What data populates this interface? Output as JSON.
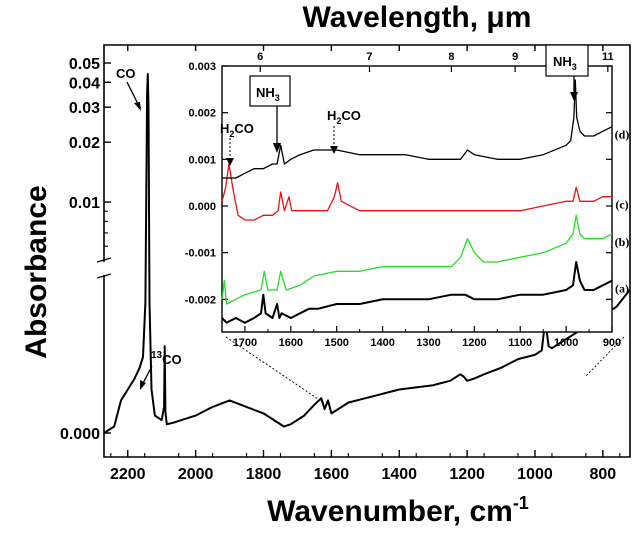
{
  "chart_data": [
    {
      "type": "line",
      "role": "main",
      "xlabel": "Wavenumber, cm",
      "xlabel_sup": "-1",
      "ylabel": "Absorbance",
      "top_axis_label": "Wavelength, μm",
      "x_axis_reversed": true,
      "xlim": [
        2270,
        720
      ],
      "x_ticks": [
        "2200",
        "2000",
        "1800",
        "1600",
        "1400",
        "1200",
        "1000",
        "800"
      ],
      "y_upper_scale": "log",
      "y_upper_ticks": [
        "0.05",
        "0.04",
        "0.03",
        "0.02",
        "0.01"
      ],
      "y_lower_ticks": [
        "0.000"
      ],
      "axis_break": true,
      "annotations": {
        "co": "CO",
        "c13_sup": "13",
        "c13": "CO"
      },
      "series": [
        {
          "x": [
            2270,
            2240,
            2220,
            2200,
            2180,
            2165,
            2155,
            2148,
            2143,
            2141,
            2139,
            2136,
            2130,
            2120,
            2100,
            2093,
            2091,
            2089,
            2085,
            2060,
            2000,
            1950,
            1900,
            1850,
            1800,
            1760,
            1740,
            1720,
            1700,
            1680,
            1650,
            1630,
            1620,
            1610,
            1600,
            1580,
            1550,
            1500,
            1450,
            1400,
            1350,
            1300,
            1250,
            1220,
            1210,
            1200,
            1180,
            1150,
            1100,
            1050,
            1000,
            980,
            970,
            960,
            950,
            930,
            900,
            850,
            800,
            760,
            720
          ],
          "y": [
            0.0,
            0.0003,
            0.0015,
            0.002,
            0.0025,
            0.003,
            0.0035,
            0.006,
            0.035,
            0.044,
            0.03,
            0.006,
            0.002,
            0.0008,
            0.0006,
            0.0012,
            0.004,
            0.001,
            0.0004,
            0.0005,
            0.0008,
            0.0012,
            0.0015,
            0.0012,
            0.0009,
            0.0005,
            0.0003,
            0.0004,
            0.0006,
            0.0008,
            0.0013,
            0.0016,
            0.0011,
            0.0015,
            0.0009,
            0.0011,
            0.0014,
            0.0016,
            0.0018,
            0.002,
            0.0021,
            0.0022,
            0.0024,
            0.0027,
            0.0026,
            0.0024,
            0.0025,
            0.0027,
            0.003,
            0.0034,
            0.0036,
            0.0038,
            0.0052,
            0.004,
            0.0039,
            0.0041,
            0.0044,
            0.0049,
            0.0054,
            0.0058,
            0.0066
          ]
        }
      ]
    },
    {
      "type": "line",
      "role": "inset",
      "x_axis_reversed": true,
      "xlim": [
        1750,
        900
      ],
      "ylim": [
        -0.0027,
        0.003
      ],
      "x_ticks": [
        "1700",
        "1600",
        "1500",
        "1400",
        "1300",
        "1200",
        "1100",
        "1000",
        "900"
      ],
      "y_ticks": [
        "0.003",
        "0.002",
        "0.001",
        "0.000",
        "-0.001",
        "-0.002"
      ],
      "top_ticks": [
        "6",
        "7",
        "8",
        "9",
        "11"
      ],
      "annotations": {
        "nh3_left": "NH",
        "nh3_left_sub": "3",
        "nh3_right": "NH",
        "nh3_right_sub": "3",
        "h2co_1": "H",
        "h2co_1_sub": "2",
        "h2co_1_rest": "CO",
        "h2co_2": "H",
        "h2co_2_sub": "2",
        "h2co_2_rest": "CO"
      },
      "series": [
        {
          "name": "(a)",
          "color": "#000000",
          "x": [
            1750,
            1740,
            1720,
            1700,
            1680,
            1665,
            1660,
            1655,
            1640,
            1630,
            1625,
            1620,
            1600,
            1580,
            1560,
            1540,
            1500,
            1450,
            1400,
            1350,
            1300,
            1250,
            1220,
            1200,
            1150,
            1100,
            1050,
            1000,
            985,
            978,
            970,
            960,
            940,
            920,
            900
          ],
          "y": [
            -0.0024,
            -0.0025,
            -0.0024,
            -0.0025,
            -0.0024,
            -0.0023,
            -0.0019,
            -0.0023,
            -0.0024,
            -0.0021,
            -0.0024,
            -0.0023,
            -0.0024,
            -0.0023,
            -0.0022,
            -0.0022,
            -0.0021,
            -0.0021,
            -0.002,
            -0.002,
            -0.002,
            -0.0019,
            -0.0019,
            -0.002,
            -0.002,
            -0.0019,
            -0.0019,
            -0.0018,
            -0.0017,
            -0.0012,
            -0.0016,
            -0.0018,
            -0.0018,
            -0.0017,
            -0.0016
          ]
        },
        {
          "name": "(b)",
          "color": "#22dd22",
          "x": [
            1750,
            1745,
            1740,
            1720,
            1700,
            1665,
            1658,
            1650,
            1630,
            1622,
            1610,
            1580,
            1550,
            1500,
            1450,
            1400,
            1350,
            1300,
            1250,
            1230,
            1215,
            1200,
            1180,
            1150,
            1100,
            1050,
            1000,
            985,
            978,
            970,
            960,
            940,
            920,
            900
          ],
          "y": [
            -0.002,
            -0.0016,
            -0.0021,
            -0.002,
            -0.0019,
            -0.0018,
            -0.0014,
            -0.0018,
            -0.0018,
            -0.0014,
            -0.0018,
            -0.0017,
            -0.0015,
            -0.0014,
            -0.0014,
            -0.0013,
            -0.0013,
            -0.0013,
            -0.0013,
            -0.0011,
            -0.0007,
            -0.001,
            -0.0012,
            -0.0012,
            -0.0011,
            -0.001,
            -0.0008,
            -0.0006,
            -0.0002,
            -0.0006,
            -0.0007,
            -0.0007,
            -0.0007,
            -0.0006
          ]
        },
        {
          "name": "(c)",
          "color": "#ee1111",
          "x": [
            1750,
            1742,
            1735,
            1725,
            1715,
            1700,
            1680,
            1660,
            1640,
            1628,
            1622,
            1614,
            1604,
            1598,
            1590,
            1560,
            1520,
            1505,
            1498,
            1490,
            1450,
            1400,
            1350,
            1300,
            1250,
            1200,
            1150,
            1100,
            1050,
            1000,
            985,
            978,
            970,
            960,
            940,
            920,
            900
          ],
          "y": [
            0.0001,
            0.0004,
            0.0009,
            0.0003,
            -0.0002,
            -0.0003,
            -0.0003,
            -0.0002,
            -0.0002,
            -0.0001,
            0.0003,
            -0.0001,
            0.0002,
            -0.0001,
            -0.0001,
            -0.0001,
            -0.0001,
            0.0002,
            0.0005,
            0.0001,
            -0.0001,
            -0.0001,
            -0.0001,
            -0.0001,
            -0.0001,
            -0.0001,
            -0.0001,
            -0.0001,
            0.0,
            0.0001,
            0.0001,
            0.0004,
            0.0001,
            0.0001,
            0.0001,
            0.0002,
            0.0002
          ]
        },
        {
          "name": "(d)",
          "color": "#000000",
          "x": [
            1750,
            1720,
            1700,
            1680,
            1660,
            1640,
            1630,
            1622,
            1614,
            1600,
            1580,
            1550,
            1500,
            1450,
            1400,
            1350,
            1300,
            1250,
            1230,
            1215,
            1200,
            1150,
            1100,
            1050,
            1000,
            990,
            983,
            980,
            977,
            970,
            960,
            940,
            920,
            900
          ],
          "y": [
            0.0006,
            0.0006,
            0.0007,
            0.0008,
            0.0008,
            0.0009,
            0.0009,
            0.0013,
            0.0009,
            0.001,
            0.0011,
            0.0012,
            0.0012,
            0.0011,
            0.0011,
            0.0011,
            0.001,
            0.001,
            0.001,
            0.0012,
            0.0011,
            0.001,
            0.001,
            0.0011,
            0.0013,
            0.0014,
            0.0019,
            0.0027,
            0.0019,
            0.0016,
            0.0015,
            0.0015,
            0.0016,
            0.0017
          ]
        }
      ]
    }
  ]
}
